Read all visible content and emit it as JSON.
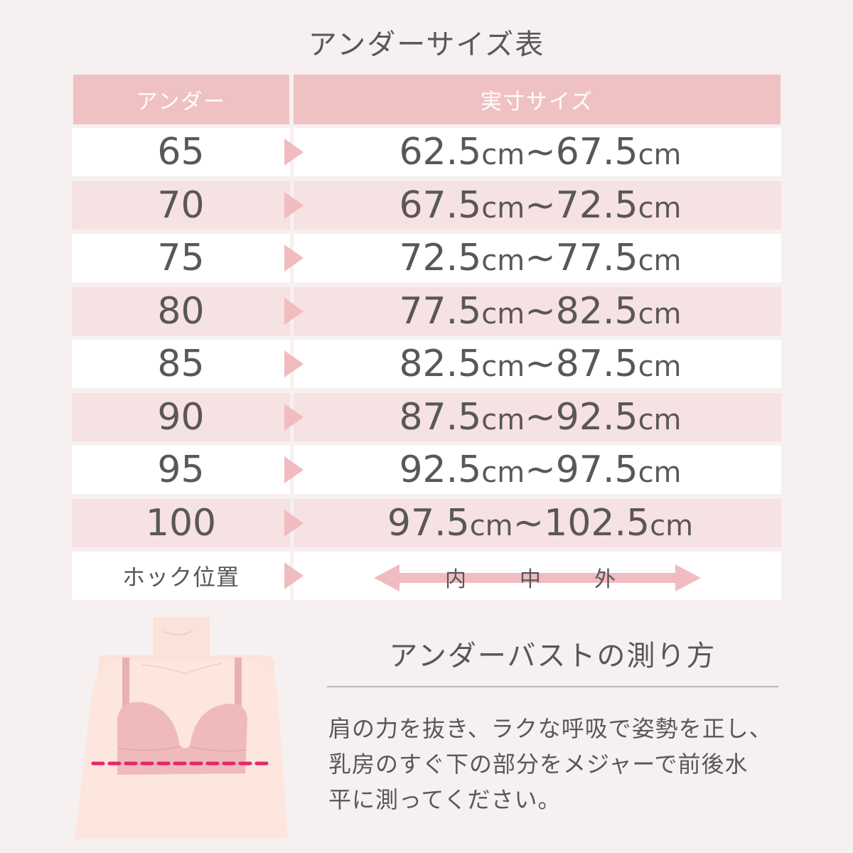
{
  "title": "アンダーサイズ表",
  "table": {
    "header": {
      "under": "アンダー",
      "actual": "実寸サイズ"
    },
    "unit": "cm",
    "separator": "~",
    "rows": [
      {
        "under": "65",
        "from": "62.5",
        "to": "67.5"
      },
      {
        "under": "70",
        "from": "67.5",
        "to": "72.5"
      },
      {
        "under": "75",
        "from": "72.5",
        "to": "77.5"
      },
      {
        "under": "80",
        "from": "77.5",
        "to": "82.5"
      },
      {
        "under": "85",
        "from": "82.5",
        "to": "87.5"
      },
      {
        "under": "90",
        "from": "87.5",
        "to": "92.5"
      },
      {
        "under": "95",
        "from": "92.5",
        "to": "97.5"
      },
      {
        "under": "100",
        "from": "97.5",
        "to": "102.5"
      }
    ],
    "hook": {
      "label": "ホック位置",
      "positions": [
        "内",
        "中",
        "外"
      ]
    }
  },
  "measure": {
    "title": "アンダーバストの測り方",
    "lines": [
      "肩の力を抜き、ラクな呼吸で姿勢を正し、",
      "乳房のすぐ下の部分をメジャーで前後水",
      "平に測ってください。"
    ]
  },
  "colors": {
    "header": "#f0c1c2",
    "row_alt": "#f6e1e3",
    "arrow": "#f0bcc0",
    "measure_line": "#e8246e"
  }
}
